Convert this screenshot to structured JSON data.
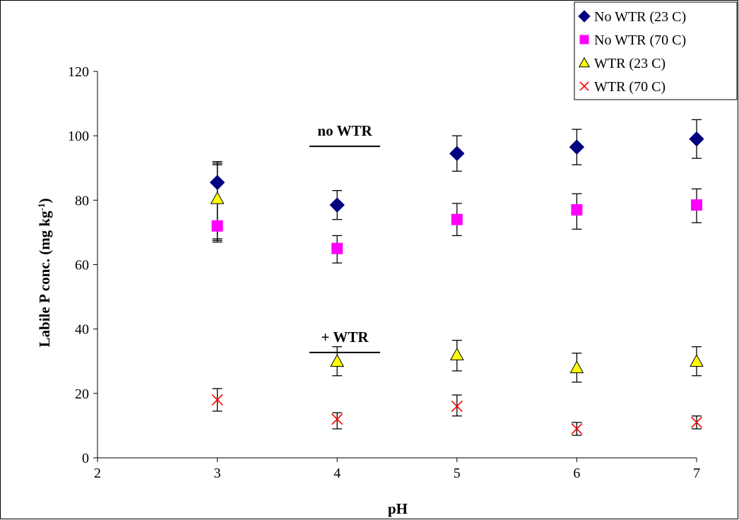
{
  "chart_data": {
    "type": "scatter",
    "xlabel": "pH",
    "ylabel_main": "Labile P conc. (mg kg",
    "ylabel_sup": "-1",
    "ylabel_close": ")",
    "xlim": [
      2,
      7
    ],
    "ylim": [
      0,
      120
    ],
    "x_ticks": [
      2,
      3,
      4,
      5,
      6,
      7
    ],
    "y_ticks": [
      0,
      20,
      40,
      60,
      80,
      100,
      120
    ],
    "grid": false,
    "legend_position": "top-right",
    "annotations": [
      {
        "text": "no WTR",
        "x": 4.4,
        "y": 100
      },
      {
        "text": "+ WTR",
        "x": 4.4,
        "y": 36
      }
    ],
    "series": [
      {
        "name": "No WTR (23 C)",
        "marker": "diamond",
        "color": "#000080",
        "x": [
          3,
          4,
          5,
          6,
          7
        ],
        "y": [
          85.5,
          78.5,
          94.5,
          96.5,
          99
        ],
        "err_low": [
          67,
          74,
          89,
          91,
          93
        ],
        "err_high": [
          91,
          83,
          100,
          102,
          105
        ]
      },
      {
        "name": "No WTR (70 C)",
        "marker": "square",
        "color": "#ff00ff",
        "x": [
          3,
          4,
          5,
          6,
          7
        ],
        "y": [
          72,
          65,
          74,
          77,
          78.5
        ],
        "err_low": [
          67.5,
          60.5,
          69,
          71,
          73
        ],
        "err_high": [
          92,
          69,
          79,
          82,
          83.5
        ]
      },
      {
        "name": "WTR (23 C)",
        "marker": "triangle",
        "color": "#ffff00",
        "x": [
          3,
          4,
          5,
          6,
          7
        ],
        "y": [
          80.5,
          30,
          32,
          28,
          30
        ],
        "err_low": [
          68,
          25.5,
          27,
          23.5,
          25.5
        ],
        "err_high": [
          91.5,
          34.5,
          36.5,
          32.5,
          34.5
        ]
      },
      {
        "name": "WTR (70 C)",
        "marker": "x",
        "color": "#ff0000",
        "x": [
          3,
          4,
          5,
          6,
          7
        ],
        "y": [
          18,
          12,
          16,
          9,
          11
        ],
        "err_low": [
          14.5,
          9,
          13,
          7,
          9
        ],
        "err_high": [
          21.5,
          14,
          19.5,
          11,
          13
        ]
      }
    ]
  }
}
